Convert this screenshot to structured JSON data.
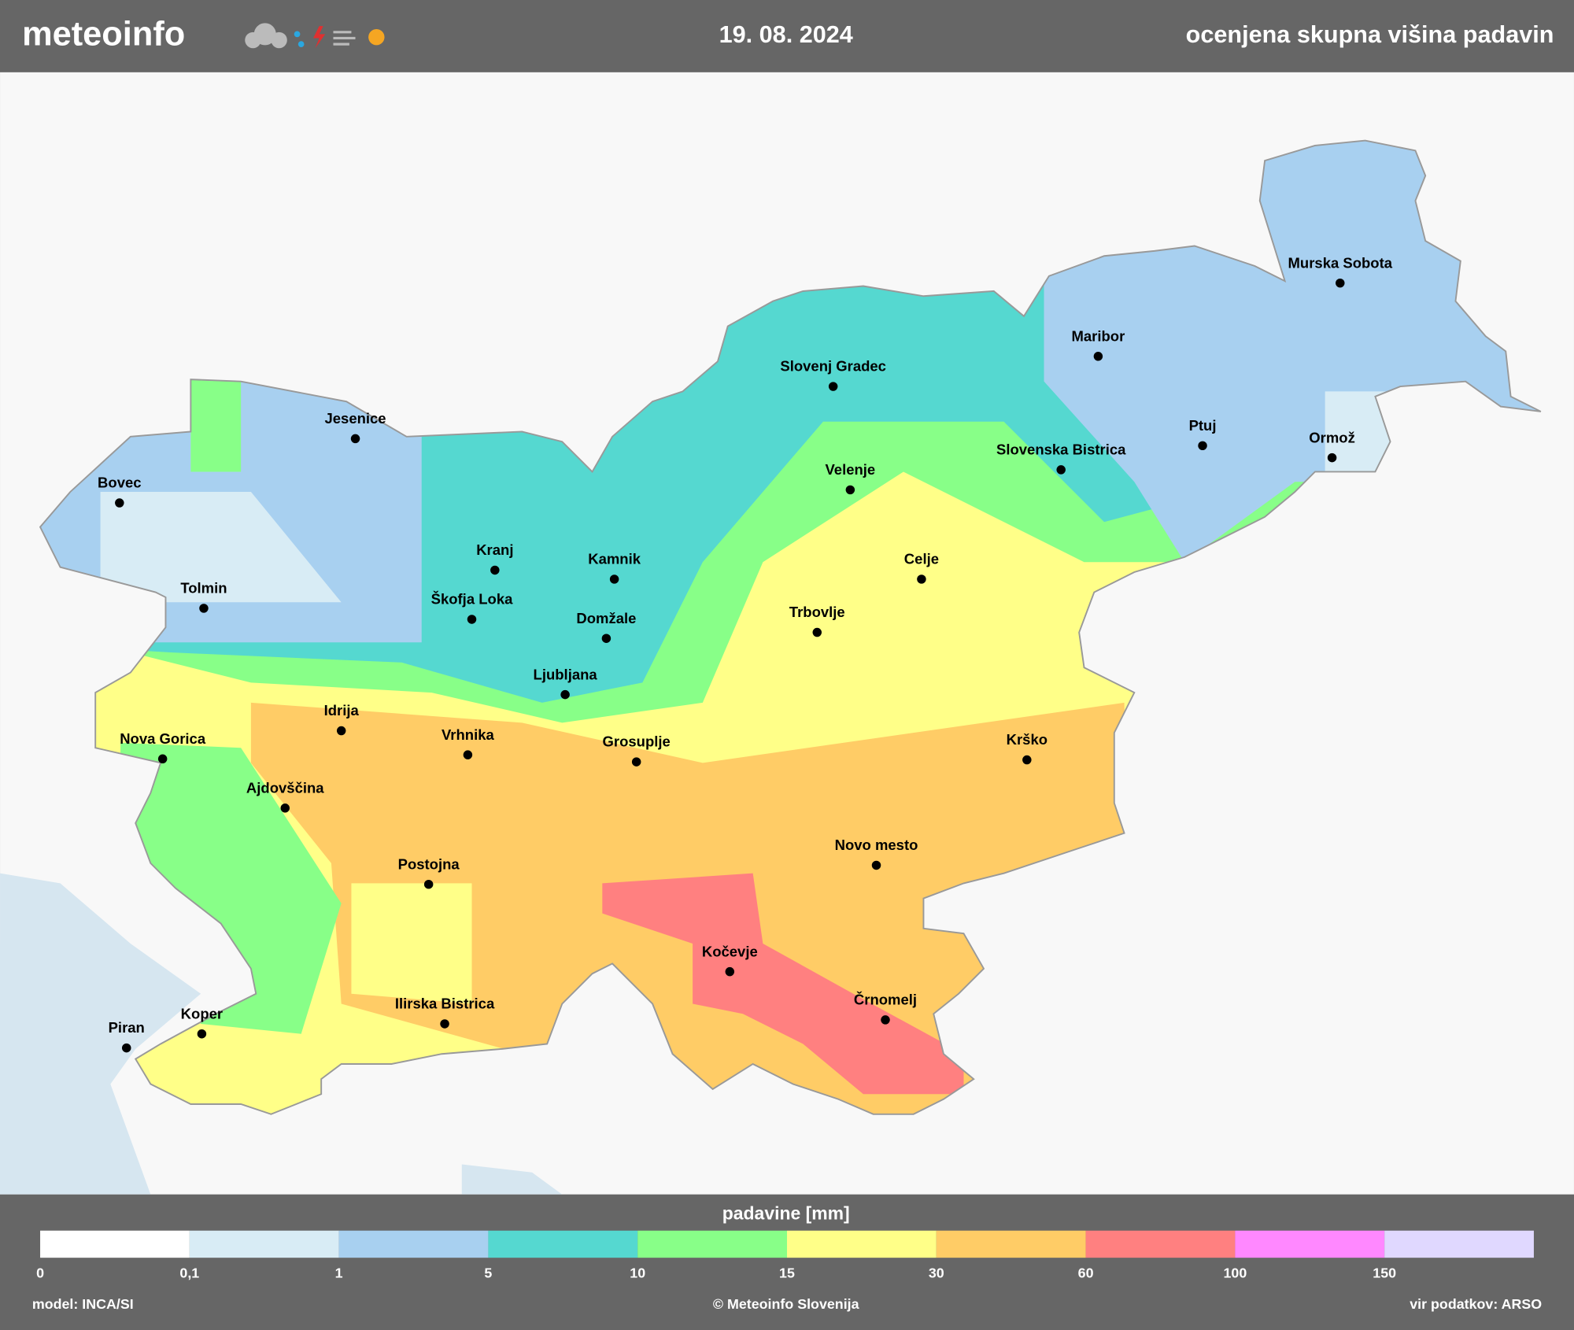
{
  "header": {
    "brand": "meteoinfo",
    "date": "19. 08. 2024",
    "title": "ocenjena skupna višina padavin"
  },
  "cities": [
    {
      "name": "Murska Sobota"
    },
    {
      "name": "Maribor"
    },
    {
      "name": "Slovenj Gradec"
    },
    {
      "name": "Jesenice"
    },
    {
      "name": "Bovec"
    },
    {
      "name": "Ptuj"
    },
    {
      "name": "Ormož"
    },
    {
      "name": "Slovenska Bistrica"
    },
    {
      "name": "Velenje"
    },
    {
      "name": "Kranj"
    },
    {
      "name": "Kamnik"
    },
    {
      "name": "Celje"
    },
    {
      "name": "Tolmin"
    },
    {
      "name": "Škofja Loka"
    },
    {
      "name": "Domžale"
    },
    {
      "name": "Trbovlje"
    },
    {
      "name": "Ljubljana"
    },
    {
      "name": "Idrija"
    },
    {
      "name": "Nova Gorica"
    },
    {
      "name": "Vrhnika"
    },
    {
      "name": "Grosuplje"
    },
    {
      "name": "Krško"
    },
    {
      "name": "Ajdovščina"
    },
    {
      "name": "Novo mesto"
    },
    {
      "name": "Postojna"
    },
    {
      "name": "Kočevje"
    },
    {
      "name": "Črnomelj"
    },
    {
      "name": "Ilirska Bistrica"
    },
    {
      "name": "Koper"
    },
    {
      "name": "Piran"
    }
  ],
  "legend": {
    "title": "padavine [mm]",
    "colors": [
      "#ffffff",
      "#d8ecf5",
      "#a8d0f0",
      "#55d8d0",
      "#88ff88",
      "#ffff88",
      "#ffcc66",
      "#ff8080",
      "#ff88ff",
      "#e0d8ff"
    ],
    "ticks": [
      0,
      {
        "value": 0.1,
        "label": "0,1"
      },
      1,
      5,
      10,
      15,
      30,
      60,
      100,
      150
    ]
  },
  "footer": {
    "left": "model: INCA/SI",
    "center": "© Meteoinfo Slovenija",
    "right": "vir podatkov: ARSO"
  }
}
